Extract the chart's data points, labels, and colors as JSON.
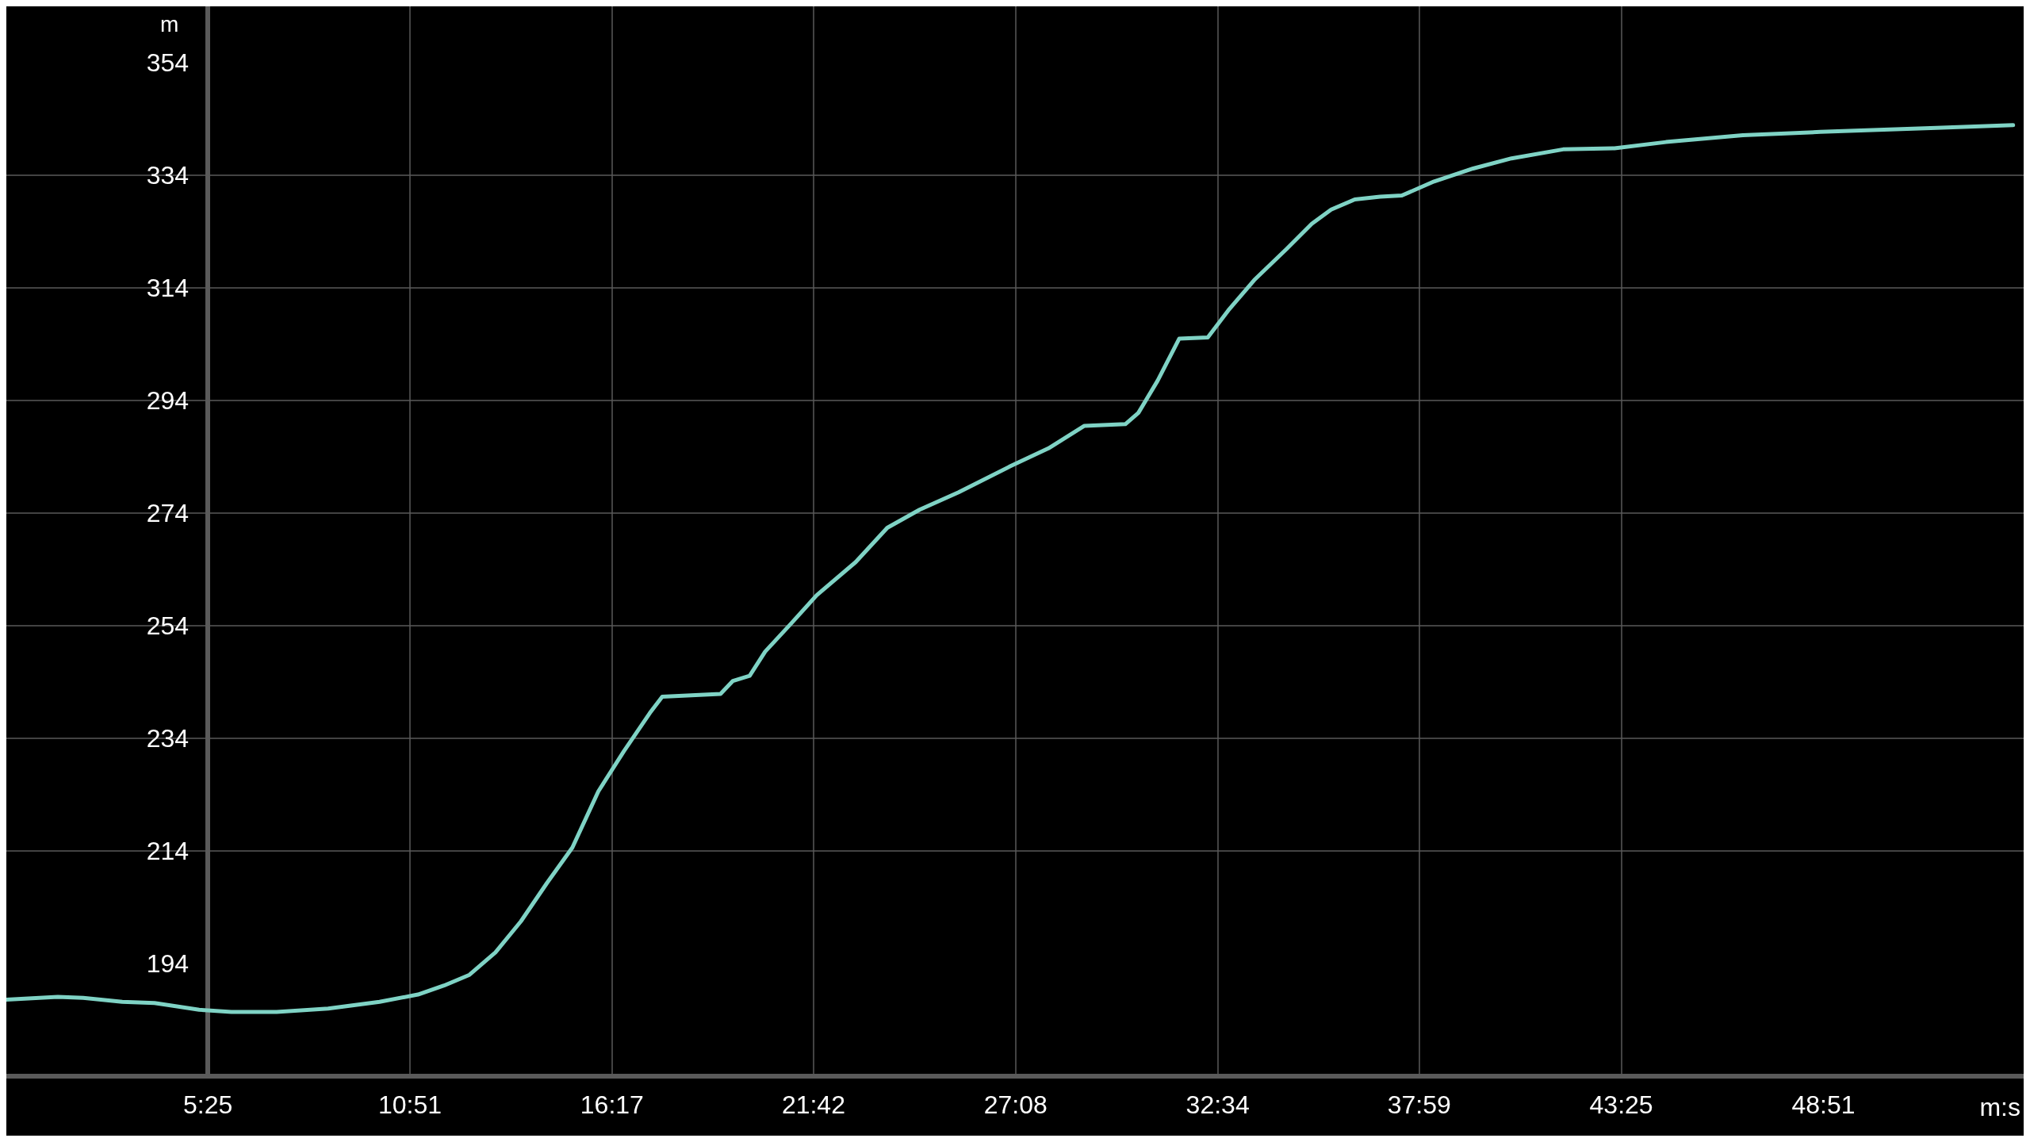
{
  "chart_data": {
    "type": "line",
    "xlabel": "m:s",
    "ylabel": "m",
    "x": [
      0,
      83,
      124,
      187,
      239,
      311,
      363,
      436,
      519,
      602,
      664,
      706,
      747,
      789,
      830,
      872,
      913,
      955,
      996,
      1038,
      1058,
      1152,
      1172,
      1199,
      1224,
      1266,
      1307,
      1370,
      1421,
      1473,
      1536,
      1619,
      1681,
      1739,
      1805,
      1826,
      1857,
      1892,
      1938,
      1971,
      2013,
      2065,
      2106,
      2137,
      2175,
      2216,
      2251,
      2303,
      2366,
      2428,
      2511,
      2594,
      2677,
      2801,
      2926,
      3113,
      3237
    ],
    "series": [
      {
        "color": "#7fd3c5",
        "values": [
          187.6,
          188.1,
          187.9,
          187.2,
          187,
          185.8,
          185.4,
          185.4,
          186,
          187.2,
          188.5,
          190.1,
          192,
          196,
          201.5,
          208.3,
          214.6,
          224.6,
          231.7,
          238.5,
          241.4,
          241.9,
          244.2,
          245.1,
          249.4,
          254.4,
          259.4,
          265.3,
          271.4,
          274.6,
          277.7,
          282.3,
          285.5,
          289.5,
          289.8,
          291.8,
          297.5,
          305,
          305.2,
          310,
          315.4,
          320.9,
          325.4,
          327.9,
          329.7,
          330.2,
          330.4,
          332.9,
          335.2,
          337,
          338.6,
          338.8,
          339.9,
          341.1,
          341.7,
          342.4,
          342.9
        ]
      }
    ],
    "xlim": [
      0,
      3254
    ],
    "ylim": [
      174,
      364
    ],
    "xticks": [
      {
        "value": 325,
        "label": "5:25"
      },
      {
        "value": 651,
        "label": "10:51"
      },
      {
        "value": 977,
        "label": "16:17"
      },
      {
        "value": 1302,
        "label": "21:42"
      },
      {
        "value": 1628,
        "label": "27:08"
      },
      {
        "value": 1954,
        "label": "32:34"
      },
      {
        "value": 2279,
        "label": "37:59"
      },
      {
        "value": 2605,
        "label": "43:25"
      },
      {
        "value": 2931,
        "label": "48:51"
      }
    ],
    "yticks": [
      194,
      214,
      234,
      254,
      274,
      294,
      314,
      334,
      354
    ],
    "grid": true,
    "marker": "none",
    "line_style": "solid"
  }
}
